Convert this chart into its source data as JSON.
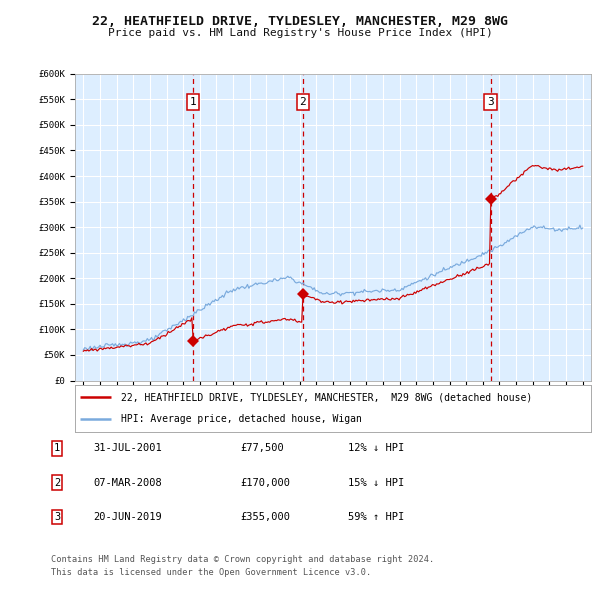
{
  "title1": "22, HEATHFIELD DRIVE, TYLDESLEY, MANCHESTER, M29 8WG",
  "title2": "Price paid vs. HM Land Registry's House Price Index (HPI)",
  "legend1": "22, HEATHFIELD DRIVE, TYLDESLEY, MANCHESTER,  M29 8WG (detached house)",
  "legend2": "HPI: Average price, detached house, Wigan",
  "footer1": "Contains HM Land Registry data © Crown copyright and database right 2024.",
  "footer2": "This data is licensed under the Open Government Licence v3.0.",
  "sale_dates_num": [
    2001.58,
    2008.18,
    2019.47
  ],
  "sale_prices": [
    77500,
    170000,
    355000
  ],
  "sale_labels": [
    "1",
    "2",
    "3"
  ],
  "table_rows": [
    [
      "1",
      "31-JUL-2001",
      "£77,500",
      "12% ↓ HPI"
    ],
    [
      "2",
      "07-MAR-2008",
      "£170,000",
      "15% ↓ HPI"
    ],
    [
      "3",
      "20-JUN-2019",
      "£355,000",
      "59% ↑ HPI"
    ]
  ],
  "red_color": "#cc0000",
  "blue_color": "#7aaadd",
  "dashed_color": "#cc0000",
  "bg_color": "#ddeeff",
  "grid_color": "#ffffff",
  "ylim": [
    0,
    600000
  ],
  "yticks": [
    0,
    50000,
    100000,
    150000,
    200000,
    250000,
    300000,
    350000,
    400000,
    450000,
    500000,
    550000,
    600000
  ],
  "xlim_start": 1994.5,
  "xlim_end": 2025.5,
  "xticks": [
    1995,
    1996,
    1997,
    1998,
    1999,
    2000,
    2001,
    2002,
    2003,
    2004,
    2005,
    2006,
    2007,
    2008,
    2009,
    2010,
    2011,
    2012,
    2013,
    2014,
    2015,
    2016,
    2017,
    2018,
    2019,
    2020,
    2021,
    2022,
    2023,
    2024,
    2025
  ]
}
